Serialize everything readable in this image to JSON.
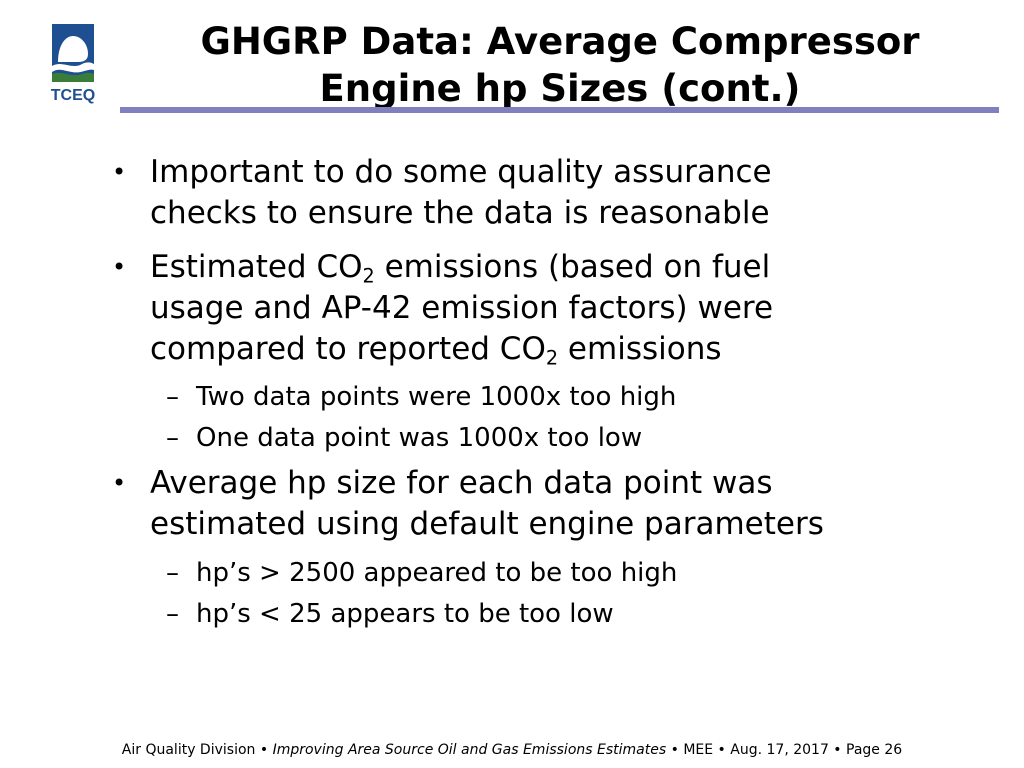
{
  "logo": {
    "text": "TCEQ",
    "icon": "tceq-logo-icon"
  },
  "title": {
    "line1": "GHGRP Data: Average Compressor",
    "line2": "Engine hp Sizes (cont.)"
  },
  "bullets": {
    "b1": {
      "line1": "Important to do some quality assurance",
      "line2": "checks to ensure the data is reasonable"
    },
    "b2": {
      "l1_pre": "Estimated CO",
      "l1_sub": "2",
      "l1_post": " emissions (based on fuel",
      "line2": "usage and AP-42 emission factors) were",
      "l3_pre": "compared to reported CO",
      "l3_sub": "2",
      "l3_post": " emissions",
      "sub1": "Two data points were 1000x too high",
      "sub2": "One data point was 1000x too low"
    },
    "b3": {
      "line1": "Average hp size for each data point was",
      "line2": "estimated using default engine parameters",
      "sub1": "hp’s > 2500 appeared to be too high",
      "sub2": "hp’s < 25 appears to be too low"
    },
    "dot": "•",
    "dash": "–"
  },
  "footer": {
    "division": "Air Quality Division",
    "sep": " • ",
    "project": "Improving Area Source Oil and Gas Emissions Estimates",
    "meeting": "MEE",
    "date": "Aug. 17, 2017",
    "page": "Page 26"
  },
  "colors": {
    "rule": "#8080c0",
    "logo_blue": "#1d4f91",
    "logo_green": "#3a7d3a"
  }
}
